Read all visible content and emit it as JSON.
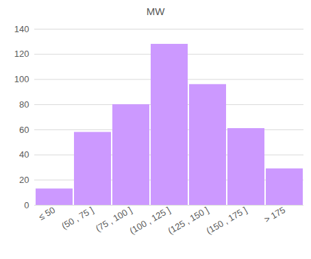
{
  "chart_data": {
    "type": "bar",
    "title": "MW",
    "categories": [
      "≤ 50",
      "(50 , 75 ]",
      "(75 , 100 ]",
      "(100 , 125 ]",
      "(125 , 150 ]",
      "(150 , 175 ]",
      "> 175"
    ],
    "values": [
      13,
      58,
      80,
      128,
      96,
      61,
      29
    ],
    "color": "#cc99ff",
    "ylim": [
      0,
      140
    ],
    "yticks": [
      0,
      20,
      40,
      60,
      80,
      100,
      120,
      140
    ],
    "grid": true
  }
}
